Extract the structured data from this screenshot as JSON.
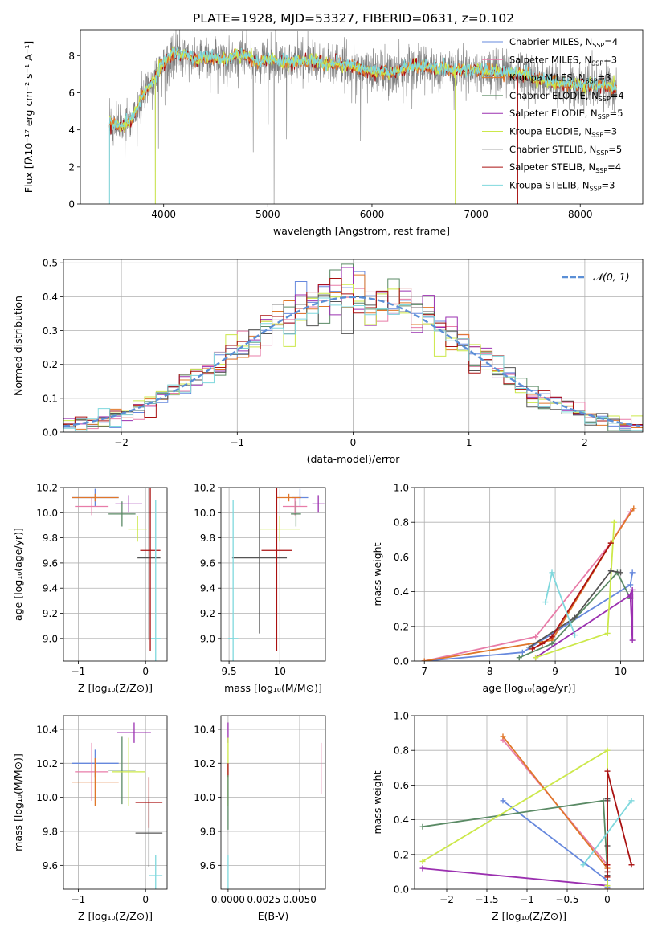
{
  "figure": {
    "title": "PLATE=1928, MJD=53327, FIBERID=0631, z=0.102"
  },
  "colors": {
    "Chabrier MILES": "#6688dd",
    "Salpeter MILES": "#e87ca8",
    "Kroupa MILES": "#e0772a",
    "Chabrier ELODIE": "#5a8a65",
    "Salpeter ELODIE": "#9b30b0",
    "Kroupa ELODIE": "#cce84a",
    "Chabrier STELIB": "#555555",
    "Salpeter STELIB": "#aa1111",
    "Kroupa STELIB": "#7fd8dd",
    "data": "#808080",
    "normal": "#5b8fd6"
  },
  "chart_data": [
    {
      "id": "spectrum",
      "type": "line",
      "title": "PLATE=1928, MJD=53327, FIBERID=0631, z=0.102",
      "xlabel": "wavelength [Angstrom, rest frame]",
      "ylabel": "Flux [fλ10⁻¹⁷ erg cm⁻² s⁻¹ A⁻¹]",
      "xlim": [
        3200,
        8600
      ],
      "ylim": [
        0,
        9.4
      ],
      "xticks": [
        4000,
        5000,
        6000,
        7000,
        8000
      ],
      "yticks": [
        0,
        2,
        4,
        6,
        8
      ],
      "grid": false,
      "legend_position": "right",
      "legend": [
        {
          "label": "Chabrier MILES, N",
          "sub": "SSP",
          "suffix": "=4",
          "key": "Chabrier MILES"
        },
        {
          "label": "Salpeter MILES, N",
          "sub": "SSP",
          "suffix": "=3",
          "key": "Salpeter MILES"
        },
        {
          "label": "Kroupa MILES, N",
          "sub": "SSP",
          "suffix": "=3",
          "key": "Kroupa MILES"
        },
        {
          "label": "Chabrier ELODIE, N",
          "sub": "SSP",
          "suffix": "=4",
          "key": "Chabrier ELODIE"
        },
        {
          "label": "Salpeter ELODIE, N",
          "sub": "SSP",
          "suffix": "=5",
          "key": "Salpeter ELODIE"
        },
        {
          "label": "Kroupa ELODIE, N",
          "sub": "SSP",
          "suffix": "=3",
          "key": "Kroupa ELODIE"
        },
        {
          "label": "Chabrier STELIB, N",
          "sub": "SSP",
          "suffix": "=5",
          "key": "Chabrier STELIB"
        },
        {
          "label": "Salpeter STELIB, N",
          "sub": "SSP",
          "suffix": "=4",
          "key": "Salpeter STELIB"
        },
        {
          "label": "Kroupa STELIB, N",
          "sub": "SSP",
          "suffix": "=3",
          "key": "Kroupa STELIB"
        }
      ],
      "continuum": {
        "x": [
          3480,
          3600,
          3700,
          3800,
          3900,
          4000,
          4100,
          4200,
          4300,
          4400,
          4500,
          4600,
          4700,
          4800,
          4900,
          5000,
          5200,
          5400,
          5600,
          5800,
          6000,
          6200,
          6400,
          6600,
          6800,
          7000,
          7200,
          7400,
          7600,
          7800,
          8000,
          8200,
          8350
        ],
        "y": [
          4.3,
          4.1,
          4.6,
          5.8,
          6.6,
          7.6,
          8.1,
          8.0,
          7.7,
          7.9,
          7.8,
          7.7,
          8.0,
          7.9,
          7.6,
          7.8,
          7.6,
          7.7,
          7.5,
          7.4,
          7.1,
          7.0,
          7.4,
          7.3,
          7.2,
          7.2,
          7.1,
          7.0,
          6.7,
          6.5,
          6.3,
          6.4,
          6.2
        ]
      },
      "dips": [
        {
          "x": 3480,
          "y": 0.0
        },
        {
          "x": 3920,
          "y": 0.0
        },
        {
          "x": 5060,
          "y": 0.0
        },
        {
          "x": 6800,
          "y": 0.0
        },
        {
          "x": 7400,
          "y": 0.0
        },
        {
          "x": 3950,
          "y": 3.0
        },
        {
          "x": 4860,
          "y": 2.8
        },
        {
          "x": 5180,
          "y": 3.5
        },
        {
          "x": 5890,
          "y": 3.4
        }
      ]
    },
    {
      "id": "residuals",
      "type": "histogram",
      "xlabel": "(data-model)/error",
      "ylabel": "Normed distribution",
      "xlim": [
        -2.5,
        2.5
      ],
      "ylim": [
        0,
        0.51
      ],
      "xticks": [
        -2,
        -1,
        0,
        1,
        2
      ],
      "yticks": [
        0.0,
        0.1,
        0.2,
        0.3,
        0.4,
        0.5
      ],
      "grid": true,
      "bin_width": 0.1,
      "legend": [
        {
          "label": "𝒩(0, 1)",
          "key": "normal",
          "style": "dashed"
        }
      ],
      "legend_position": "top-right"
    },
    {
      "id": "age-vs-z",
      "type": "scatter",
      "xlabel": "Z [log₁₀(Z/Z⊙)]",
      "ylabel": "age  [log₁₀(age/yr)]",
      "xlim": [
        -1.22,
        0.32
      ],
      "ylim": [
        8.82,
        10.2
      ],
      "xticks": [
        -1,
        0
      ],
      "yticks": [
        9.0,
        9.2,
        9.4,
        9.6,
        9.8,
        10.0,
        10.2
      ],
      "grid": true,
      "points": [
        {
          "key": "Chabrier MILES",
          "x": -0.75,
          "xerr": 0.35,
          "y": 10.12,
          "yerr": 0.07
        },
        {
          "key": "Salpeter MILES",
          "x": -0.8,
          "xerr": 0.25,
          "y": 10.05,
          "yerr": 0.07
        },
        {
          "key": "Kroupa MILES",
          "x": -0.75,
          "xerr": 0.35,
          "y": 10.12,
          "yerr": 0.03
        },
        {
          "key": "Chabrier ELODIE",
          "x": -0.35,
          "xerr": 0.2,
          "y": 9.99,
          "yerr": 0.1
        },
        {
          "key": "Salpeter ELODIE",
          "x": -0.25,
          "xerr": 0.2,
          "y": 10.07,
          "yerr": 0.07
        },
        {
          "key": "Kroupa ELODIE",
          "x": -0.12,
          "xerr": 0.14,
          "y": 9.87,
          "yerr": 0.1
        },
        {
          "key": "Chabrier STELIB",
          "x": 0.05,
          "xerr": 0.17,
          "y": 9.64,
          "yerr": 0.65
        },
        {
          "key": "Salpeter STELIB",
          "x": 0.07,
          "xerr": 0.15,
          "y": 9.7,
          "yerr": 0.8
        },
        {
          "key": "Kroupa STELIB",
          "x": 0.15,
          "xerr": 0.07,
          "y": 9.0,
          "yerr": 1.1
        }
      ]
    },
    {
      "id": "age-vs-mass",
      "type": "scatter",
      "xlabel": "mass [log₁₀(M/M⊙)]",
      "ylabel": "",
      "xlim": [
        9.42,
        10.45
      ],
      "ylim": [
        8.82,
        10.2
      ],
      "xticks": [
        9.5,
        10.0
      ],
      "yticks": [
        9.0,
        9.2,
        9.4,
        9.6,
        9.8,
        10.0,
        10.2
      ],
      "grid": true,
      "points": [
        {
          "key": "Chabrier MILES",
          "x": 10.2,
          "xerr": 0.08,
          "y": 10.12,
          "yerr": 0.07
        },
        {
          "key": "Salpeter MILES",
          "x": 10.15,
          "xerr": 0.12,
          "y": 10.05,
          "yerr": 0.07
        },
        {
          "key": "Kroupa MILES",
          "x": 10.09,
          "xerr": 0.12,
          "y": 10.12,
          "yerr": 0.03
        },
        {
          "key": "Chabrier ELODIE",
          "x": 10.16,
          "xerr": 0.05,
          "y": 9.99,
          "yerr": 0.1
        },
        {
          "key": "Salpeter ELODIE",
          "x": 10.38,
          "xerr": 0.06,
          "y": 10.07,
          "yerr": 0.07
        },
        {
          "key": "Kroupa ELODIE",
          "x": 10.0,
          "xerr": 0.2,
          "y": 9.87,
          "yerr": 0.1
        },
        {
          "key": "Chabrier STELIB",
          "x": 9.8,
          "xerr": 0.27,
          "y": 9.64,
          "yerr": 0.6
        },
        {
          "key": "Salpeter STELIB",
          "x": 9.97,
          "xerr": 0.15,
          "y": 9.7,
          "yerr": 0.8
        },
        {
          "key": "Kroupa STELIB",
          "x": 9.54,
          "xerr": 0.05,
          "y": 9.0,
          "yerr": 1.1
        }
      ]
    },
    {
      "id": "weight-vs-age",
      "type": "line",
      "xlabel": "age  [log₁₀(age/yr)]",
      "ylabel": "mass weight",
      "xlim": [
        6.85,
        10.35
      ],
      "ylim": [
        0,
        1.0
      ],
      "xticks": [
        7,
        8,
        9,
        10
      ],
      "yticks": [
        0.0,
        0.2,
        0.4,
        0.6,
        0.8,
        1.0
      ],
      "grid": true,
      "series": [
        {
          "key": "Chabrier MILES",
          "x": [
            7.0,
            8.5,
            10.15,
            10.18
          ],
          "y": [
            0.0,
            0.05,
            0.44,
            0.51
          ]
        },
        {
          "key": "Salpeter MILES",
          "x": [
            7.0,
            8.7,
            9.85,
            10.15
          ],
          "y": [
            0.0,
            0.14,
            0.68,
            0.86
          ]
        },
        {
          "key": "Kroupa MILES",
          "x": [
            7.0,
            8.95,
            9.85,
            10.2
          ],
          "y": [
            0.0,
            0.12,
            0.68,
            0.88
          ]
        },
        {
          "key": "Chabrier ELODIE",
          "x": [
            8.45,
            8.95,
            9.95,
            10.15
          ],
          "y": [
            0.02,
            0.1,
            0.51,
            0.36
          ]
        },
        {
          "key": "Salpeter ELODIE",
          "x": [
            8.7,
            10.15,
            10.18,
            10.18,
            10.15
          ],
          "y": [
            0.02,
            0.38,
            0.41,
            0.12,
            0.37
          ]
        },
        {
          "key": "Kroupa ELODIE",
          "x": [
            8.7,
            9.8,
            9.9
          ],
          "y": [
            0.02,
            0.16,
            0.8
          ]
        },
        {
          "key": "Chabrier STELIB",
          "x": [
            8.6,
            9.3,
            9.85,
            10.0
          ],
          "y": [
            0.08,
            0.25,
            0.52,
            0.51
          ]
        },
        {
          "key": "Salpeter STELIB",
          "x": [
            8.65,
            8.8,
            8.95,
            9.85
          ],
          "y": [
            0.07,
            0.1,
            0.14,
            0.68
          ]
        },
        {
          "key": "Kroupa STELIB",
          "x": [
            8.85,
            8.95,
            9.3
          ],
          "y": [
            0.34,
            0.51,
            0.15
          ]
        }
      ]
    },
    {
      "id": "mass-vs-z",
      "type": "scatter",
      "xlabel": "Z [log₁₀(Z/Z⊙)]",
      "ylabel": "mass [log₁₀(M/M⊙)]",
      "xlim": [
        -1.22,
        0.32
      ],
      "ylim": [
        9.46,
        10.48
      ],
      "xticks": [
        -1,
        0
      ],
      "yticks": [
        9.6,
        9.8,
        10.0,
        10.2,
        10.4
      ],
      "grid": true,
      "points": [
        {
          "key": "Chabrier MILES",
          "x": -0.75,
          "xerr": 0.35,
          "y": 10.2,
          "yerr": 0.08
        },
        {
          "key": "Salpeter MILES",
          "x": -0.8,
          "xerr": 0.25,
          "y": 10.15,
          "yerr": 0.17
        },
        {
          "key": "Kroupa MILES",
          "x": -0.75,
          "xerr": 0.35,
          "y": 10.09,
          "yerr": 0.14
        },
        {
          "key": "Chabrier ELODIE",
          "x": -0.35,
          "xerr": 0.2,
          "y": 10.16,
          "yerr": 0.2
        },
        {
          "key": "Salpeter ELODIE",
          "x": -0.17,
          "xerr": 0.25,
          "y": 10.38,
          "yerr": 0.06
        },
        {
          "key": "Kroupa ELODIE",
          "x": -0.25,
          "xerr": 0.25,
          "y": 10.15,
          "yerr": 0.2
        },
        {
          "key": "Chabrier STELIB",
          "x": 0.05,
          "xerr": 0.2,
          "y": 9.79,
          "yerr": 0.2
        },
        {
          "key": "Salpeter STELIB",
          "x": 0.05,
          "xerr": 0.2,
          "y": 9.97,
          "yerr": 0.15
        },
        {
          "key": "Kroupa STELIB",
          "x": 0.15,
          "xerr": 0.1,
          "y": 9.54,
          "yerr": 0.12
        }
      ]
    },
    {
      "id": "mass-vs-ebv",
      "type": "scatter",
      "xlabel": "E(B-V)",
      "ylabel": "",
      "xlim": [
        -0.0005,
        0.0068
      ],
      "ylim": [
        9.46,
        10.48
      ],
      "xticks": [
        0.0,
        0.0025,
        0.005
      ],
      "xtick_labels": [
        "0.0000",
        "0.0025",
        "0.0050"
      ],
      "yticks": [
        9.6,
        9.8,
        10.0,
        10.2,
        10.4
      ],
      "grid": true,
      "points": [
        {
          "key": "Kroupa STELIB",
          "x": 0.0,
          "y": 9.54,
          "yerr": 0.12
        },
        {
          "key": "Salpeter ELODIE",
          "x": 0.0,
          "y": 10.38,
          "yerr": 0.06
        },
        {
          "key": "Kroupa ELODIE",
          "x": 0.0,
          "y": 10.15,
          "yerr": 0.2
        },
        {
          "key": "Salpeter STELIB",
          "x": 0.0,
          "y": 10.16,
          "yerr": 0.04
        },
        {
          "key": "Chabrier ELODIE",
          "x": 0.0,
          "y": 9.97,
          "yerr": 0.16
        },
        {
          "key": "Salpeter MILES",
          "x": 0.0065,
          "y": 10.17,
          "yerr": 0.15
        }
      ]
    },
    {
      "id": "weight-vs-z",
      "type": "line",
      "xlabel": "Z [log₁₀(Z/Z⊙)]",
      "ylabel": "mass weight",
      "xlim": [
        -2.4,
        0.45
      ],
      "ylim": [
        0,
        1.0
      ],
      "xticks": [
        -2.0,
        -1.5,
        -1.0,
        -0.5,
        0.0
      ],
      "grid": true,
      "yticks": [
        0.0,
        0.2,
        0.4,
        0.6,
        0.8,
        1.0
      ],
      "series": [
        {
          "key": "Chabrier MILES",
          "x": [
            -1.3,
            0.0,
            0.0
          ],
          "y": [
            0.51,
            0.05,
            0.01
          ]
        },
        {
          "key": "Salpeter MILES",
          "x": [
            -1.3,
            0.0,
            0.0
          ],
          "y": [
            0.86,
            0.14,
            0.0
          ]
        },
        {
          "key": "Kroupa MILES",
          "x": [
            -1.3,
            0.0,
            0.0
          ],
          "y": [
            0.88,
            0.12,
            0.0
          ]
        },
        {
          "key": "Chabrier ELODIE",
          "x": [
            -2.3,
            -0.05,
            0.0,
            0.0
          ],
          "y": [
            0.36,
            0.51,
            0.1,
            0.02
          ]
        },
        {
          "key": "Salpeter ELODIE",
          "x": [
            -2.3,
            0.0
          ],
          "y": [
            0.12,
            0.02
          ]
        },
        {
          "key": "Kroupa ELODIE",
          "x": [
            -2.3,
            0.0,
            0.0
          ],
          "y": [
            0.16,
            0.8,
            0.02
          ]
        },
        {
          "key": "Chabrier STELIB",
          "x": [
            0.0,
            0.0,
            0.0,
            0.0,
            0.0
          ],
          "y": [
            0.08,
            0.25,
            0.52,
            0.51,
            0.1
          ]
        },
        {
          "key": "Salpeter STELIB",
          "x": [
            0.0,
            0.0,
            0.0,
            0.0,
            0.3
          ],
          "y": [
            0.07,
            0.1,
            0.14,
            0.68,
            0.14
          ]
        },
        {
          "key": "Kroupa STELIB",
          "x": [
            -0.3,
            0.3
          ],
          "y": [
            0.14,
            0.51
          ]
        }
      ]
    }
  ]
}
